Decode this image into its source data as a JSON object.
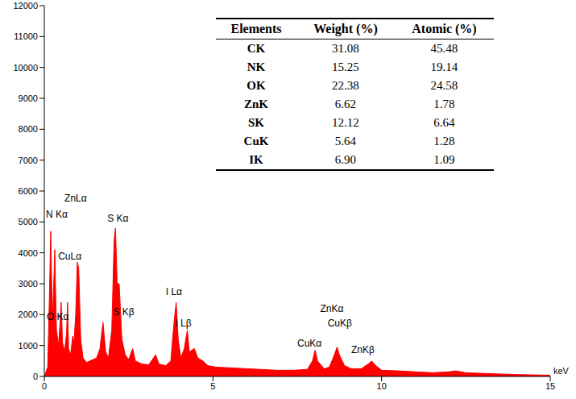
{
  "chart_data": {
    "type": "area",
    "color": "#ff0000",
    "x_label": "keV",
    "xlim": [
      0,
      15
    ],
    "xticks": [
      0,
      5,
      10,
      15
    ],
    "ylim": [
      0,
      12000
    ],
    "yticks": [
      0,
      1000,
      2000,
      3000,
      4000,
      5000,
      6000,
      7000,
      8000,
      9000,
      10000,
      11000,
      12000
    ],
    "x": [
      0.0,
      0.1,
      0.15,
      0.19,
      0.24,
      0.28,
      0.31,
      0.36,
      0.42,
      0.46,
      0.5,
      0.54,
      0.6,
      0.66,
      0.69,
      0.72,
      0.78,
      0.84,
      0.88,
      0.93,
      0.98,
      1.02,
      1.08,
      1.15,
      1.25,
      1.35,
      1.45,
      1.55,
      1.65,
      1.74,
      1.82,
      1.9,
      2.0,
      2.07,
      2.11,
      2.16,
      2.22,
      2.3,
      2.4,
      2.5,
      2.62,
      2.7,
      2.9,
      3.1,
      3.3,
      3.4,
      3.6,
      3.75,
      3.85,
      3.91,
      3.97,
      4.05,
      4.15,
      4.24,
      4.3,
      4.45,
      4.55,
      4.7,
      4.85,
      5.1,
      5.5,
      6.0,
      6.4,
      6.9,
      7.4,
      7.8,
      7.95,
      8.03,
      8.1,
      8.3,
      8.45,
      8.6,
      8.68,
      8.75,
      8.9,
      9.1,
      9.4,
      9.6,
      9.71,
      9.8,
      10.0,
      10.5,
      11.0,
      11.5,
      12.0,
      12.2,
      12.5,
      13.0,
      13.5,
      14.0,
      14.5,
      15.0
    ],
    "values": [
      0,
      300,
      2500,
      4700,
      1800,
      3000,
      4100,
      1500,
      1000,
      1600,
      2400,
      1100,
      800,
      1400,
      2400,
      900,
      700,
      1300,
      1100,
      2000,
      3700,
      3500,
      1200,
      600,
      450,
      500,
      550,
      600,
      900,
      1750,
      800,
      600,
      1500,
      4400,
      4800,
      3000,
      3000,
      1200,
      700,
      550,
      900,
      500,
      400,
      380,
      700,
      400,
      350,
      500,
      1800,
      2400,
      1200,
      600,
      900,
      1500,
      800,
      900,
      600,
      500,
      350,
      300,
      280,
      250,
      230,
      200,
      200,
      230,
      500,
      850,
      500,
      250,
      300,
      700,
      950,
      700,
      350,
      250,
      250,
      400,
      500,
      380,
      200,
      180,
      150,
      120,
      150,
      180,
      120,
      100,
      80,
      60,
      50,
      40
    ],
    "annotations": [
      {
        "text": "N Kα",
        "x": 0.05,
        "y": 5250
      },
      {
        "text": "ZnLα",
        "x": 0.6,
        "y": 5760
      },
      {
        "text": "CuLα",
        "x": 0.41,
        "y": 3890
      },
      {
        "text": "O Kα",
        "x": 0.07,
        "y": 1930
      },
      {
        "text": "S Kα",
        "x": 1.87,
        "y": 5110
      },
      {
        "text": "S Kβ",
        "x": 2.04,
        "y": 2080
      },
      {
        "text": "I Lα",
        "x": 3.6,
        "y": 2740
      },
      {
        "text": "I Lβ",
        "x": 3.88,
        "y": 1720
      },
      {
        "text": "CuKα",
        "x": 7.5,
        "y": 1070
      },
      {
        "text": "ZnKα",
        "x": 8.18,
        "y": 2190
      },
      {
        "text": "CuKβ",
        "x": 8.4,
        "y": 1720
      },
      {
        "text": "ZnKβ",
        "x": 9.1,
        "y": 860
      }
    ]
  },
  "table": {
    "columns": [
      "Elements",
      "Weight (%)",
      "Atomic (%)"
    ],
    "rows": [
      [
        "CK",
        "31.08",
        "45.48"
      ],
      [
        "NK",
        "15.25",
        "19.14"
      ],
      [
        "OK",
        "22.38",
        "24.58"
      ],
      [
        "ZnK",
        "6.62",
        "1.78"
      ],
      [
        "SK",
        "12.12",
        "6.64"
      ],
      [
        "CuK",
        "5.64",
        "1.28"
      ],
      [
        "IK",
        "6.90",
        "1.09"
      ]
    ]
  }
}
